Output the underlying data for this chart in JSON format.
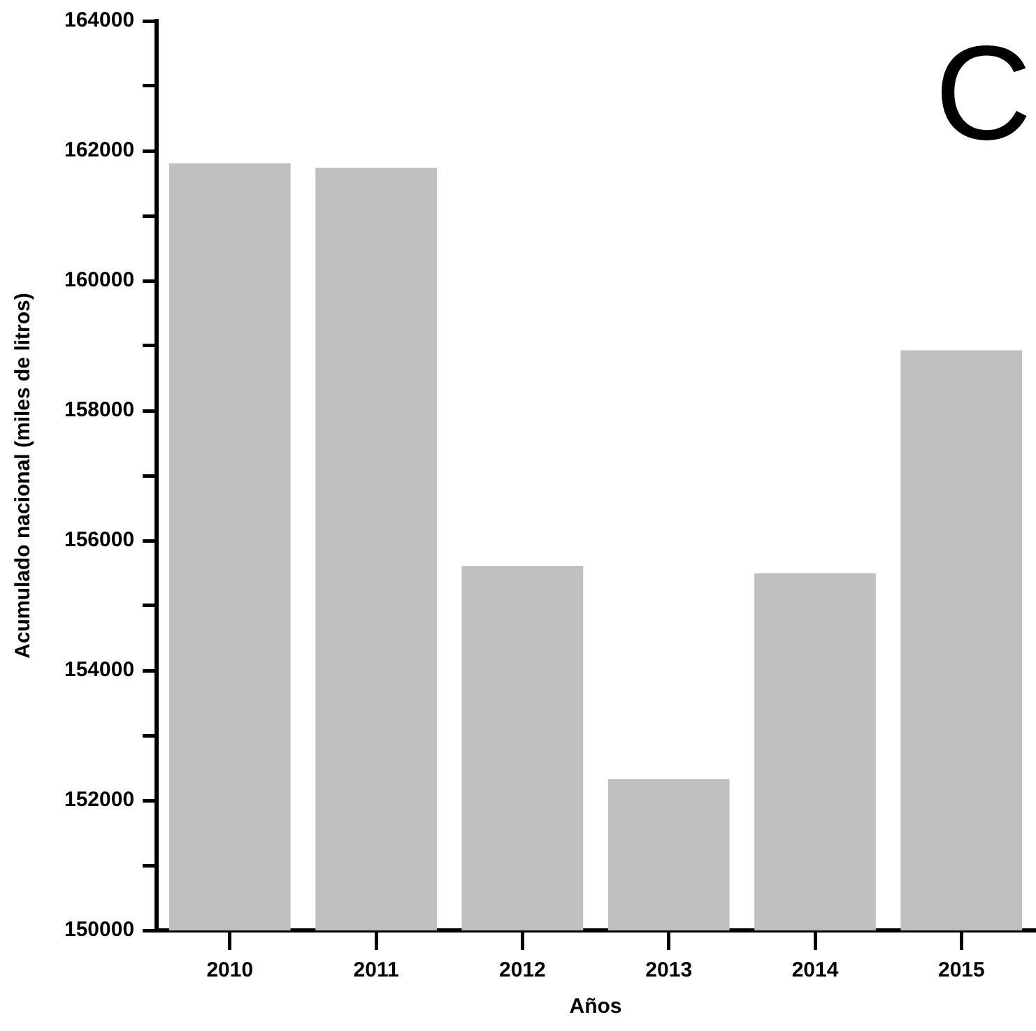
{
  "chart_data": {
    "type": "bar",
    "categories": [
      "2010",
      "2011",
      "2012",
      "2013",
      "2014",
      "2015"
    ],
    "values": [
      161810,
      161740,
      155610,
      152330,
      155500,
      158930
    ],
    "color": "#c0c0c0",
    "xlabel": "Años",
    "ylabel": "Acumulado nacional (miles de litros)",
    "ylim": [
      150000,
      164000
    ],
    "yticks": [
      150000,
      {
        "value": 151000,
        "label": null
      },
      152000,
      {
        "value": 153000,
        "label": null
      },
      154000,
      {
        "value": 155000,
        "label": null
      },
      156000,
      {
        "value": 157000,
        "label": null
      },
      158000,
      {
        "value": 159000,
        "label": null
      },
      160000,
      {
        "value": 161000,
        "label": null
      },
      162000,
      {
        "value": 163000,
        "label": null
      },
      164000
    ],
    "annotations": [
      "C"
    ],
    "grid": false,
    "legend": false
  }
}
